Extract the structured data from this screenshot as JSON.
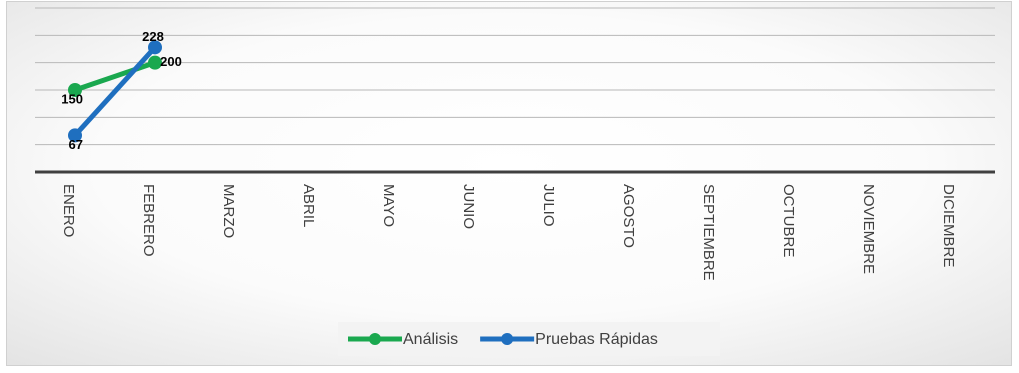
{
  "chart_data": {
    "type": "line",
    "categories": [
      "ENERO",
      "FEBRERO",
      "MARZO",
      "ABRIL",
      "MAYO",
      "JUNIO",
      "JULIO",
      "AGOSTO",
      "SEPTIEMBRE",
      "OCTUBRE",
      "NOVIEMBRE",
      "DICIEMBRE"
    ],
    "series": [
      {
        "name": "Análisis",
        "color": "#1aa84f",
        "values": [
          150,
          200,
          null,
          null,
          null,
          null,
          null,
          null,
          null,
          null,
          null,
          null
        ]
      },
      {
        "name": "Pruebas Rápidas",
        "color": "#1f6fbf",
        "values": [
          67,
          228,
          null,
          null,
          null,
          null,
          null,
          null,
          null,
          null,
          null,
          null
        ]
      }
    ],
    "ylim": [
      0,
      300
    ],
    "yticks": [
      50,
      100,
      150,
      200,
      250,
      300
    ],
    "grid": true
  }
}
